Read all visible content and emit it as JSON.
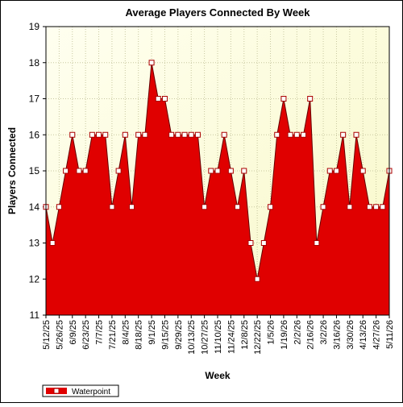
{
  "chart_data": {
    "type": "area",
    "title": "Average Players Connected By Week",
    "x_label": "Week",
    "y_label": "Players Connected",
    "categories": [
      "5/12/25",
      null,
      "5/26/25",
      null,
      "6/9/25",
      null,
      "6/23/25",
      null,
      "7/7/25",
      null,
      "7/21/25",
      null,
      "8/4/25",
      null,
      "8/18/25",
      null,
      "9/1/25",
      null,
      "9/15/25",
      null,
      "9/29/25",
      null,
      "10/13/25",
      null,
      "10/27/25",
      null,
      "11/10/25",
      null,
      "11/24/25",
      null,
      "12/8/25",
      null,
      "12/22/25",
      null,
      "1/5/26",
      null,
      "1/19/26",
      null,
      "2/2/26",
      null,
      "2/16/26",
      null,
      "3/2/26",
      null,
      "3/16/26",
      null,
      "3/30/26",
      null,
      "4/13/26",
      null,
      "4/27/26",
      null,
      "5/11/26"
    ],
    "series": [
      {
        "name": "Waterpoint",
        "color": "#e00000",
        "values": [
          14,
          13,
          14,
          15,
          16,
          15,
          15,
          16,
          16,
          16,
          14,
          15,
          16,
          14,
          16,
          16,
          18,
          17,
          17,
          16,
          16,
          16,
          16,
          16,
          14,
          15,
          15,
          16,
          15,
          14,
          15,
          13,
          12,
          13,
          14,
          16,
          17,
          16,
          16,
          16,
          17,
          13,
          14,
          15,
          15,
          16,
          14,
          16,
          15,
          14,
          14,
          14,
          15
        ]
      }
    ],
    "ylim": [
      11,
      19
    ],
    "yticks": [
      11,
      12,
      13,
      14,
      15,
      16,
      17,
      18,
      19
    ],
    "grid": true,
    "legend": "bottom-left"
  }
}
